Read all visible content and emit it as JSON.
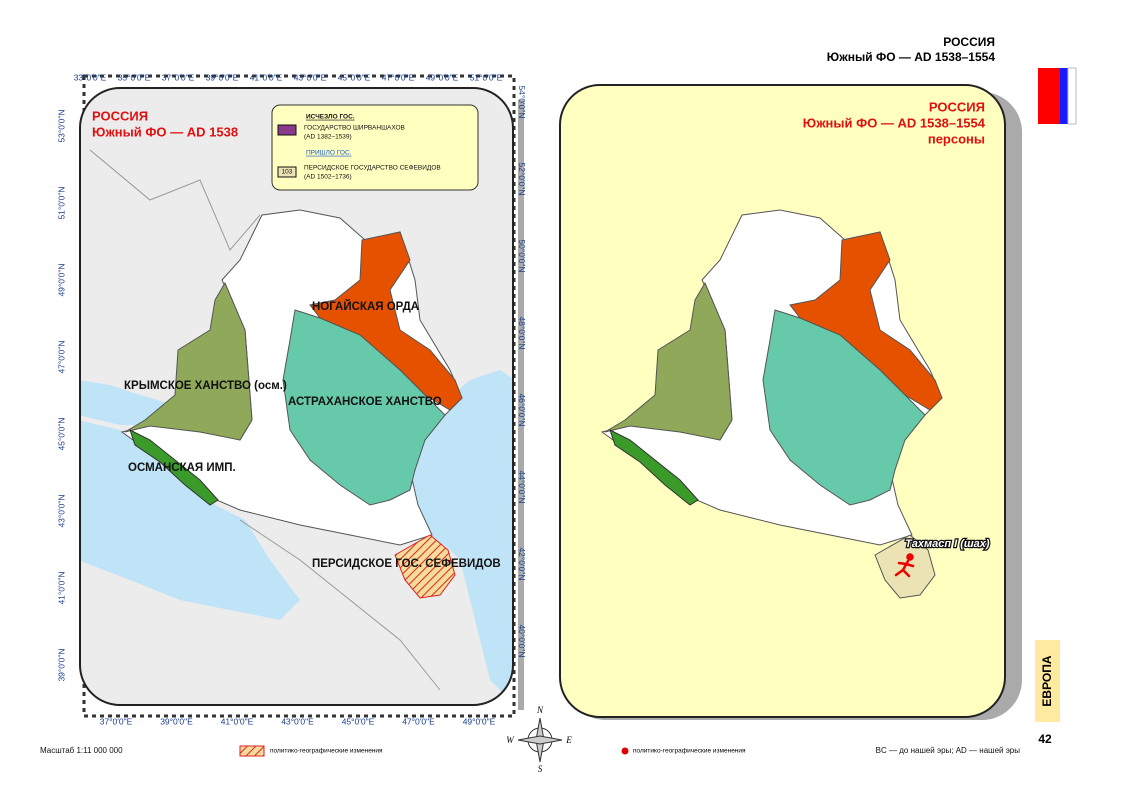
{
  "header": {
    "title": "РОССИЯ",
    "subtitle": "Южный ФО — AD 1538–1554"
  },
  "left_map": {
    "title": "РОССИЯ",
    "subtitle": "Южный ФО —  AD 1538",
    "legend": {
      "gone_heading": "ИСЧЕЗЛО ГОС.",
      "gone_name": "ГОСУДАРСТВО ШИРВАНШАХОВ",
      "gone_dates": "(AD 1382–1539)",
      "new_heading": "ПРИШЛО ГОС.",
      "new_code": "103",
      "new_name": "ПЕРСИДСКОЕ ГОСУДАРСТВО СЕФЕВИДОВ",
      "new_dates": "(AD 1502–1736)"
    },
    "regions": [
      "НОГАЙСКАЯ ОРДА",
      "КРЫМСКОЕ ХАНСТВО (осм.)",
      "АСТРАХАНСКОЕ ХАНСТВО",
      "ОСМАНСКАЯ ИМП.",
      "ПЕРСИДСКОЕ ГОС. СЕФЕВИДОВ"
    ],
    "lon_top": [
      "33°0'0\"E",
      "35°0'0\"E",
      "37°0'0\"E",
      "39°0'0\"E",
      "41°0'0\"E",
      "43°0'0\"E",
      "45°0'0\"E",
      "47°0'0\"E",
      "49°0'0\"E",
      "51°0'0\"E"
    ],
    "lon_bottom": [
      "37°0'0\"E",
      "39°0'0\"E",
      "41°0'0\"E",
      "43°0'0\"E",
      "45°0'0\"E",
      "47°0'0\"E",
      "49°0'0\"E"
    ],
    "lat_left": [
      "53°0'0\"N",
      "51°0'0\"N",
      "49°0'0\"N",
      "47°0'0\"N",
      "45°0'0\"N",
      "43°0'0\"N",
      "41°0'0\"N",
      "39°0'0\"N"
    ],
    "lat_right": [
      "54°0'0\"N",
      "52°0'0\"N",
      "50°0'0\"N",
      "48°0'0\"N",
      "46°0'0\"N",
      "44°0'0\"N",
      "42°0'0\"N",
      "40°0'0\"N"
    ]
  },
  "right_map": {
    "title": "РОССИЯ",
    "subtitle": "Южный ФО —  AD 1538–1554",
    "note": "персоны",
    "person": "Тахмасп I (шах)"
  },
  "compass": {
    "n": "N",
    "w": "W",
    "e": "E",
    "s": "S"
  },
  "footer": {
    "scale": "Масштаб 1:11 000 000",
    "legend_hatch": "политико-географические изменения",
    "legend_dot": "политико-географические изменения",
    "era_note": "BC — до нашей эры; AD — нашей эры",
    "section": "ЕВРОПА",
    "page": "42"
  }
}
